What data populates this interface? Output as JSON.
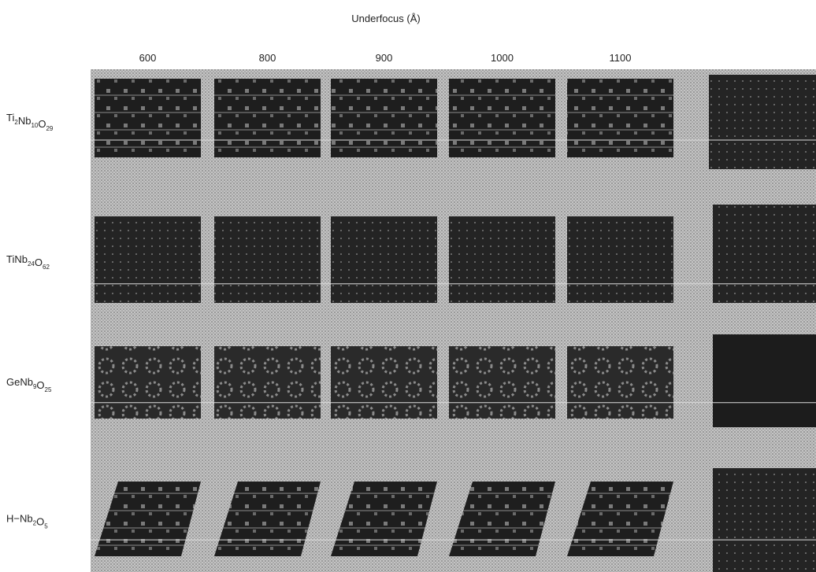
{
  "figure": {
    "title": "Underfocus (Å)",
    "columns": [
      "600",
      "800",
      "900",
      "1000",
      "1100"
    ],
    "rows": [
      {
        "label": [
          [
            "Ti",
            "2"
          ],
          [
            "Nb",
            "10"
          ],
          [
            "O",
            "29"
          ]
        ]
      },
      {
        "label": [
          [
            "TiNb",
            "24"
          ],
          [
            "O",
            "62"
          ]
        ]
      },
      {
        "label": [
          [
            "GeNb",
            "9"
          ],
          [
            "O",
            "25"
          ]
        ]
      },
      {
        "label": [
          [
            "H−Nb",
            "2"
          ],
          [
            "O",
            "5"
          ]
        ]
      }
    ]
  }
}
